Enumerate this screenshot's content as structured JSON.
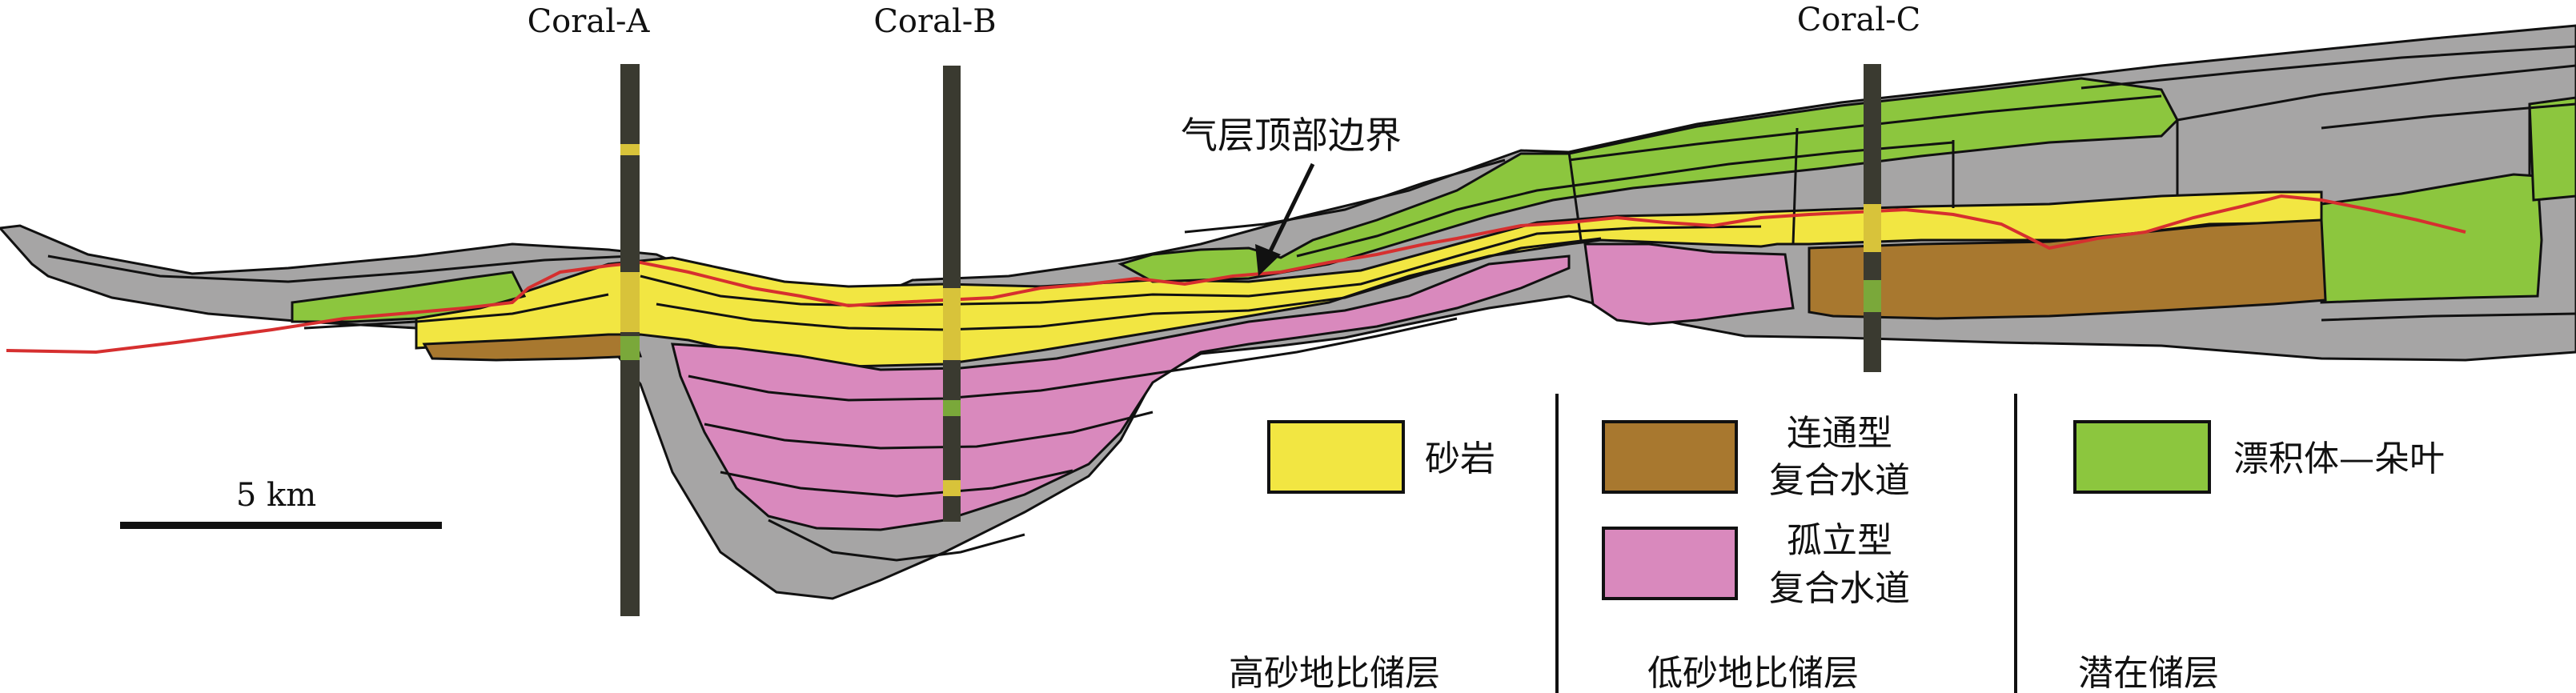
{
  "wells": [
    {
      "name": "Coral-A"
    },
    {
      "name": "Coral-B"
    },
    {
      "name": "Coral-C"
    }
  ],
  "annotation": {
    "text": "气层顶部边界"
  },
  "scale_bar": {
    "label": "5 km"
  },
  "legend": [
    {
      "label": "砂岩",
      "color": "#f2e642"
    },
    {
      "label_line1": "连通型",
      "label_line2": "复合水道",
      "color": "#a8782f"
    },
    {
      "label_line1": "孤立型",
      "label_line2": "复合水道",
      "color": "#d989bd"
    },
    {
      "label": "漂积体—朵叶",
      "color": "#8cc63e"
    }
  ],
  "categories": [
    {
      "label": "高砂地比储层"
    },
    {
      "label": "低砂地比储层"
    },
    {
      "label": "潜在储层"
    }
  ],
  "colors": {
    "gray": "#a6a5a5",
    "sand": "#f2e642",
    "brown": "#a8782f",
    "pink": "#d989bd",
    "green": "#8cc63e",
    "gas_line": "#d62f2f",
    "well": "#3a3a30"
  }
}
